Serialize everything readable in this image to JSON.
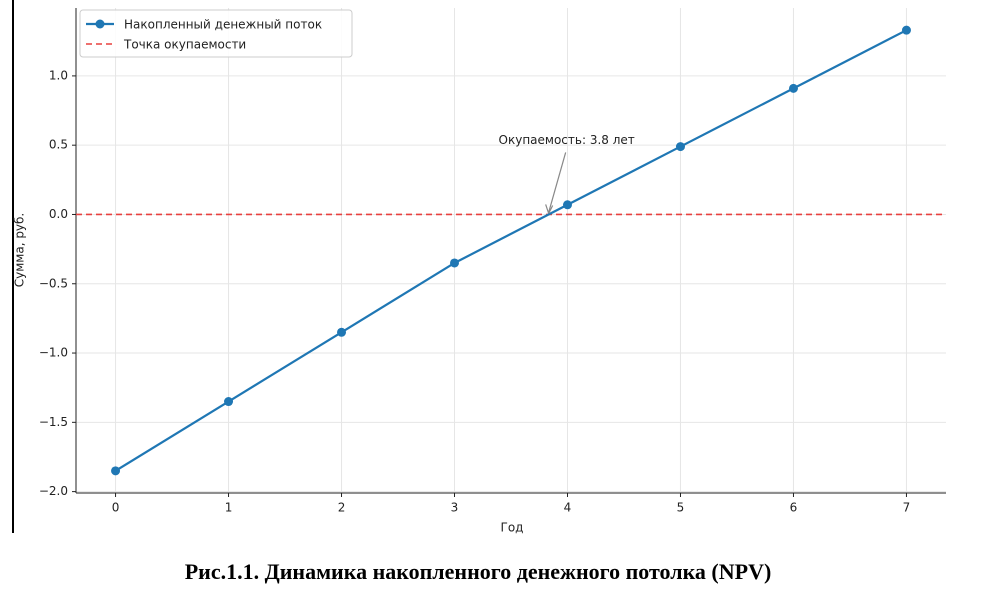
{
  "chart_data": {
    "type": "line",
    "x": [
      0,
      1,
      2,
      3,
      4,
      5,
      6,
      7
    ],
    "series": [
      {
        "name": "Накопленный денежный поток",
        "color": "#1f77b4",
        "values": [
          -1.85,
          -1.35,
          -0.85,
          -0.35,
          0.07,
          0.49,
          0.91,
          1.33
        ]
      }
    ],
    "reference_line": {
      "name": "Точка окупаемости",
      "value": 0,
      "color": "#e8403f"
    },
    "annotation": "Окупаемость: 3.8 лет",
    "xlabel": "Год",
    "ylabel": "Сумма, руб.",
    "xlim": [
      -0.35,
      7.35
    ],
    "ylim": [
      -2.01,
      1.49
    ],
    "xticks": [
      0,
      1,
      2,
      3,
      4,
      5,
      6,
      7
    ],
    "yticks": [
      {
        "value": -2.0,
        "label": "−2.0"
      },
      {
        "value": -1.5,
        "label": "−1.5"
      },
      {
        "value": -1.0,
        "label": "−1.0"
      },
      {
        "value": -0.5,
        "label": "−0.5"
      },
      {
        "value": 0,
        "label": "0.0"
      },
      {
        "value": 0.5,
        "label": "0.5"
      },
      {
        "value": 1.0,
        "label": "1.0"
      }
    ],
    "grid": true,
    "legend": "upper left"
  },
  "caption": "Рис.1.1. Динамика накопленного денежного потолка (NPV)"
}
